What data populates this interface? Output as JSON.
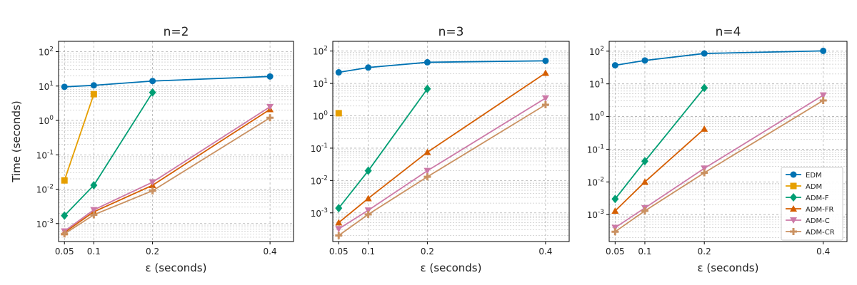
{
  "chart_data": [
    {
      "type": "line",
      "title": "n=2",
      "xlabel": "ε (seconds)",
      "ylabel": "Time (seconds)",
      "yscale": "log",
      "xlim": [
        0.04,
        0.44
      ],
      "ylim": [
        0.0003,
        200
      ],
      "x_ticks": [
        "0.05",
        "0.1",
        "0.2",
        "0.4"
      ],
      "y_ticks": [
        "10^-3",
        "10^-2",
        "10^-1",
        "10^0",
        "10^1",
        "10^2"
      ],
      "grid": true,
      "series": [
        {
          "name": "EDM",
          "marker": "circle",
          "color": "#0072b2",
          "x": [
            0.05,
            0.1,
            0.2,
            0.4
          ],
          "y": [
            9.5,
            10.5,
            14,
            19
          ]
        },
        {
          "name": "ADM",
          "marker": "square",
          "color": "#e69f00",
          "x": [
            0.05,
            0.1
          ],
          "y": [
            0.018,
            5.8
          ]
        },
        {
          "name": "ADM-F",
          "marker": "diamond",
          "color": "#009e73",
          "x": [
            0.05,
            0.1,
            0.2
          ],
          "y": [
            0.0017,
            0.013,
            6.5
          ]
        },
        {
          "name": "ADM-FR",
          "marker": "triangle-up",
          "color": "#d55e00",
          "x": [
            0.05,
            0.1,
            0.2,
            0.4
          ],
          "y": [
            0.00055,
            0.0022,
            0.013,
            2.1
          ]
        },
        {
          "name": "ADM-C",
          "marker": "triangle-down",
          "color": "#cc79a7",
          "x": [
            0.05,
            0.1,
            0.2,
            0.4
          ],
          "y": [
            0.0006,
            0.0025,
            0.016,
            2.5
          ]
        },
        {
          "name": "ADM-CR",
          "marker": "plus",
          "color": "#ca9161",
          "x": [
            0.05,
            0.1,
            0.2,
            0.4
          ],
          "y": [
            0.0005,
            0.0018,
            0.009,
            1.2
          ]
        }
      ]
    },
    {
      "type": "line",
      "title": "n=3",
      "xlabel": "ε (seconds)",
      "ylabel": "",
      "yscale": "log",
      "xlim": [
        0.04,
        0.44
      ],
      "ylim": [
        0.00013,
        200
      ],
      "x_ticks": [
        "0.05",
        "0.1",
        "0.2",
        "0.4"
      ],
      "y_ticks": [
        "10^-3",
        "10^-2",
        "10^-1",
        "10^0",
        "10^1",
        "10^2"
      ],
      "grid": true,
      "series": [
        {
          "name": "EDM",
          "marker": "circle",
          "color": "#0072b2",
          "x": [
            0.05,
            0.1,
            0.2,
            0.4
          ],
          "y": [
            22,
            31,
            45,
            50
          ]
        },
        {
          "name": "ADM",
          "marker": "square",
          "color": "#e69f00",
          "x": [
            0.05
          ],
          "y": [
            1.2
          ]
        },
        {
          "name": "ADM-F",
          "marker": "diamond",
          "color": "#009e73",
          "x": [
            0.05,
            0.1,
            0.2
          ],
          "y": [
            0.0014,
            0.02,
            6.8
          ]
        },
        {
          "name": "ADM-FR",
          "marker": "triangle-up",
          "color": "#d55e00",
          "x": [
            0.05,
            0.1,
            0.2,
            0.4
          ],
          "y": [
            0.0005,
            0.0028,
            0.075,
            21
          ]
        },
        {
          "name": "ADM-C",
          "marker": "triangle-down",
          "color": "#cc79a7",
          "x": [
            0.05,
            0.1,
            0.2,
            0.4
          ],
          "y": [
            0.00032,
            0.0012,
            0.02,
            3.5
          ]
        },
        {
          "name": "ADM-CR",
          "marker": "plus",
          "color": "#ca9161",
          "x": [
            0.05,
            0.1,
            0.2,
            0.4
          ],
          "y": [
            0.0002,
            0.0009,
            0.013,
            2.2
          ]
        }
      ]
    },
    {
      "type": "line",
      "title": "n=4",
      "xlabel": "ε (seconds)",
      "ylabel": "",
      "yscale": "log",
      "xlim": [
        0.04,
        0.44
      ],
      "ylim": [
        0.00015,
        200
      ],
      "x_ticks": [
        "0.05",
        "0.1",
        "0.2",
        "0.4"
      ],
      "y_ticks": [
        "10^-3",
        "10^-2",
        "10^-1",
        "10^0",
        "10^1",
        "10^2"
      ],
      "grid": true,
      "legend_position": "lower-right",
      "series": [
        {
          "name": "EDM",
          "marker": "circle",
          "color": "#0072b2",
          "x": [
            0.05,
            0.1,
            0.2,
            0.4
          ],
          "y": [
            37,
            52,
            85,
            102
          ]
        },
        {
          "name": "ADM",
          "marker": "square",
          "color": "#e69f00",
          "x": [],
          "y": []
        },
        {
          "name": "ADM-F",
          "marker": "diamond",
          "color": "#009e73",
          "x": [
            0.05,
            0.1,
            0.2
          ],
          "y": [
            0.003,
            0.043,
            7.5
          ]
        },
        {
          "name": "ADM-FR",
          "marker": "triangle-up",
          "color": "#d55e00",
          "x": [
            0.05,
            0.1,
            0.2
          ],
          "y": [
            0.0013,
            0.01,
            0.42
          ]
        },
        {
          "name": "ADM-C",
          "marker": "triangle-down",
          "color": "#cc79a7",
          "x": [
            0.05,
            0.1,
            0.2,
            0.4
          ],
          "y": [
            0.0004,
            0.0016,
            0.026,
            4.5
          ]
        },
        {
          "name": "ADM-CR",
          "marker": "plus",
          "color": "#ca9161",
          "x": [
            0.05,
            0.1,
            0.2,
            0.4
          ],
          "y": [
            0.0003,
            0.0013,
            0.019,
            3.1
          ]
        }
      ]
    }
  ]
}
